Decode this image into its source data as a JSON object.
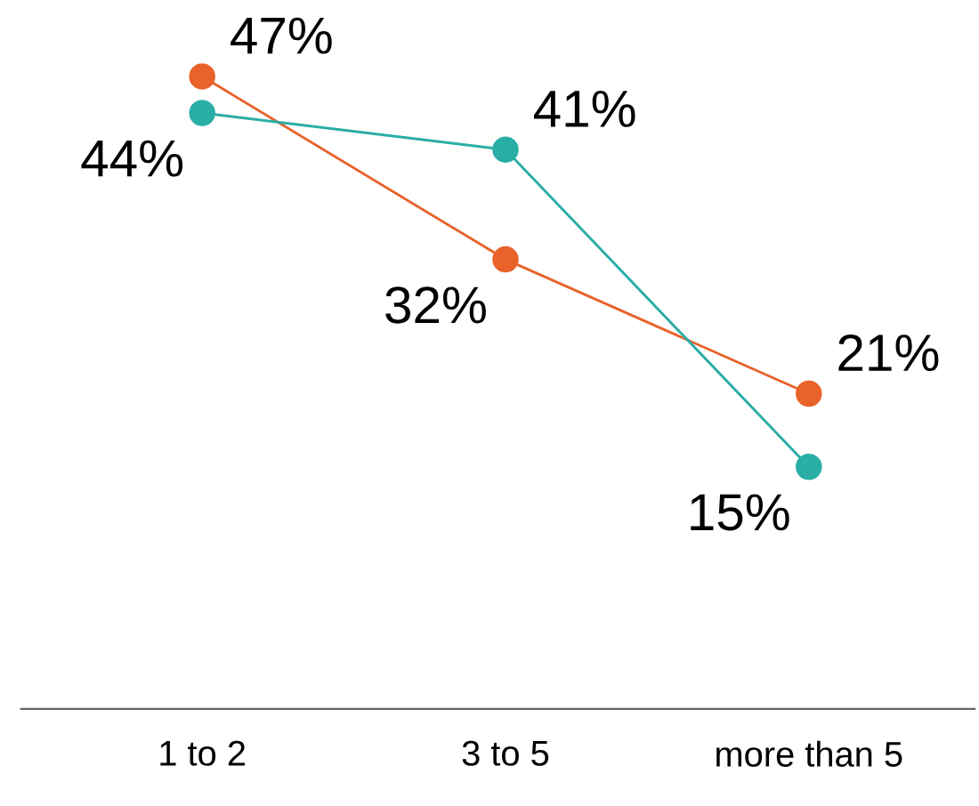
{
  "chart_data": {
    "type": "line",
    "categories": [
      "1 to 2",
      "3 to 5",
      "more than 5"
    ],
    "series": [
      {
        "color": "#e8622a",
        "values": [
          47,
          32,
          21
        ],
        "value_labels": [
          "47%",
          "32%",
          "21%"
        ]
      },
      {
        "color": "#2aaea6",
        "values": [
          44,
          41,
          15
        ],
        "value_labels": [
          "44%",
          "41%",
          "15%"
        ]
      }
    ],
    "tick_labels": "x",
    "marker": "circle",
    "line_style": "solid",
    "grid": false
  }
}
